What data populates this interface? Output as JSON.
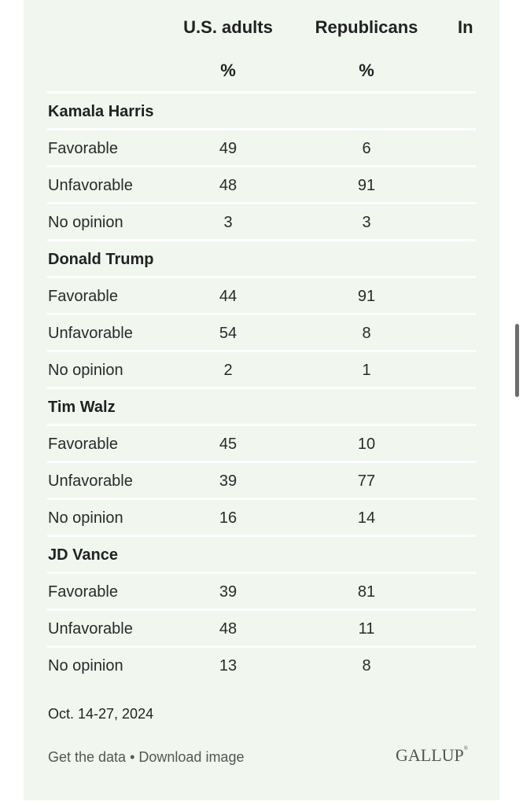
{
  "columns": {
    "adults": "U.S. adults",
    "republicans": "Republicans",
    "independents_partial": "In",
    "pct": "%"
  },
  "groups": [
    {
      "name": "Kamala Harris",
      "rows": [
        {
          "label": "Favorable",
          "adults": "49",
          "republicans": "6"
        },
        {
          "label": "Unfavorable",
          "adults": "48",
          "republicans": "91"
        },
        {
          "label": "No opinion",
          "adults": "3",
          "republicans": "3"
        }
      ]
    },
    {
      "name": "Donald Trump",
      "rows": [
        {
          "label": "Favorable",
          "adults": "44",
          "republicans": "91"
        },
        {
          "label": "Unfavorable",
          "adults": "54",
          "republicans": "8"
        },
        {
          "label": "No opinion",
          "adults": "2",
          "republicans": "1"
        }
      ]
    },
    {
      "name": "Tim Walz",
      "rows": [
        {
          "label": "Favorable",
          "adults": "45",
          "republicans": "10"
        },
        {
          "label": "Unfavorable",
          "adults": "39",
          "republicans": "77"
        },
        {
          "label": "No opinion",
          "adults": "16",
          "republicans": "14"
        }
      ]
    },
    {
      "name": "JD Vance",
      "rows": [
        {
          "label": "Favorable",
          "adults": "39",
          "republicans": "81"
        },
        {
          "label": "Unfavorable",
          "adults": "48",
          "republicans": "11"
        },
        {
          "label": "No opinion",
          "adults": "13",
          "republicans": "8"
        }
      ]
    }
  ],
  "footer": {
    "date": "Oct. 14-27, 2024",
    "get_data": "Get the data",
    "separator": " • ",
    "download": "Download image",
    "logo": "GALLUP",
    "logo_mark": "®"
  },
  "colors": {
    "panel_bg": "#f1f6ef",
    "divider": "#ffffff"
  }
}
